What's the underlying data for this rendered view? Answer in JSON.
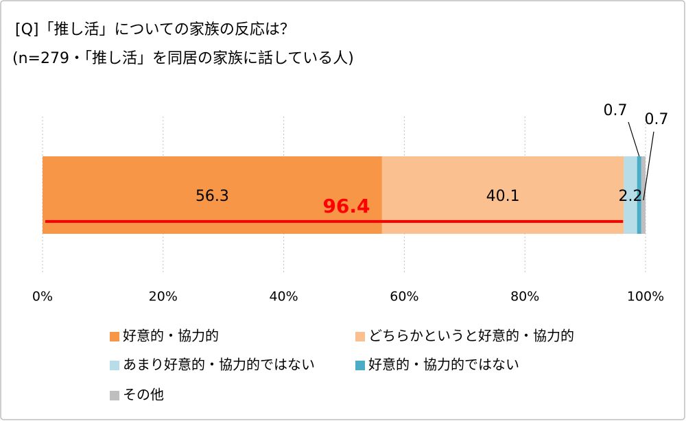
{
  "chart_data": {
    "type": "stacked-bar",
    "orientation": "horizontal",
    "title": "[Q]「推し活」についての家族の反応は？",
    "subtitle": "(n=279・「推し活」を同居の家族に話している人)",
    "series": [
      {
        "name": "好意的・協力的",
        "color": "#f79646",
        "values": [
          56.3
        ]
      },
      {
        "name": "どちらかというと好意的・協力的",
        "color": "#fac090",
        "values": [
          40.1
        ]
      },
      {
        "name": "あまり好意的・協力的ではない",
        "color": "#b7dee8",
        "values": [
          2.2
        ]
      },
      {
        "name": "好意的・協力的ではない",
        "color": "#4bacc6",
        "values": [
          0.7
        ]
      },
      {
        "name": "その他",
        "color": "#bfbfbf",
        "values": [
          0.7
        ]
      }
    ],
    "xlim": [
      0,
      100
    ],
    "xticks": [
      {
        "value": 0,
        "label": "0%"
      },
      {
        "value": 20,
        "label": "20%"
      },
      {
        "value": 40,
        "label": "40%"
      },
      {
        "value": 60,
        "label": "60%"
      },
      {
        "value": 80,
        "label": "80%"
      },
      {
        "value": 100,
        "label": "100%"
      }
    ],
    "grid": true,
    "annotation": {
      "value": 96.4,
      "color": "#ff0000"
    }
  }
}
